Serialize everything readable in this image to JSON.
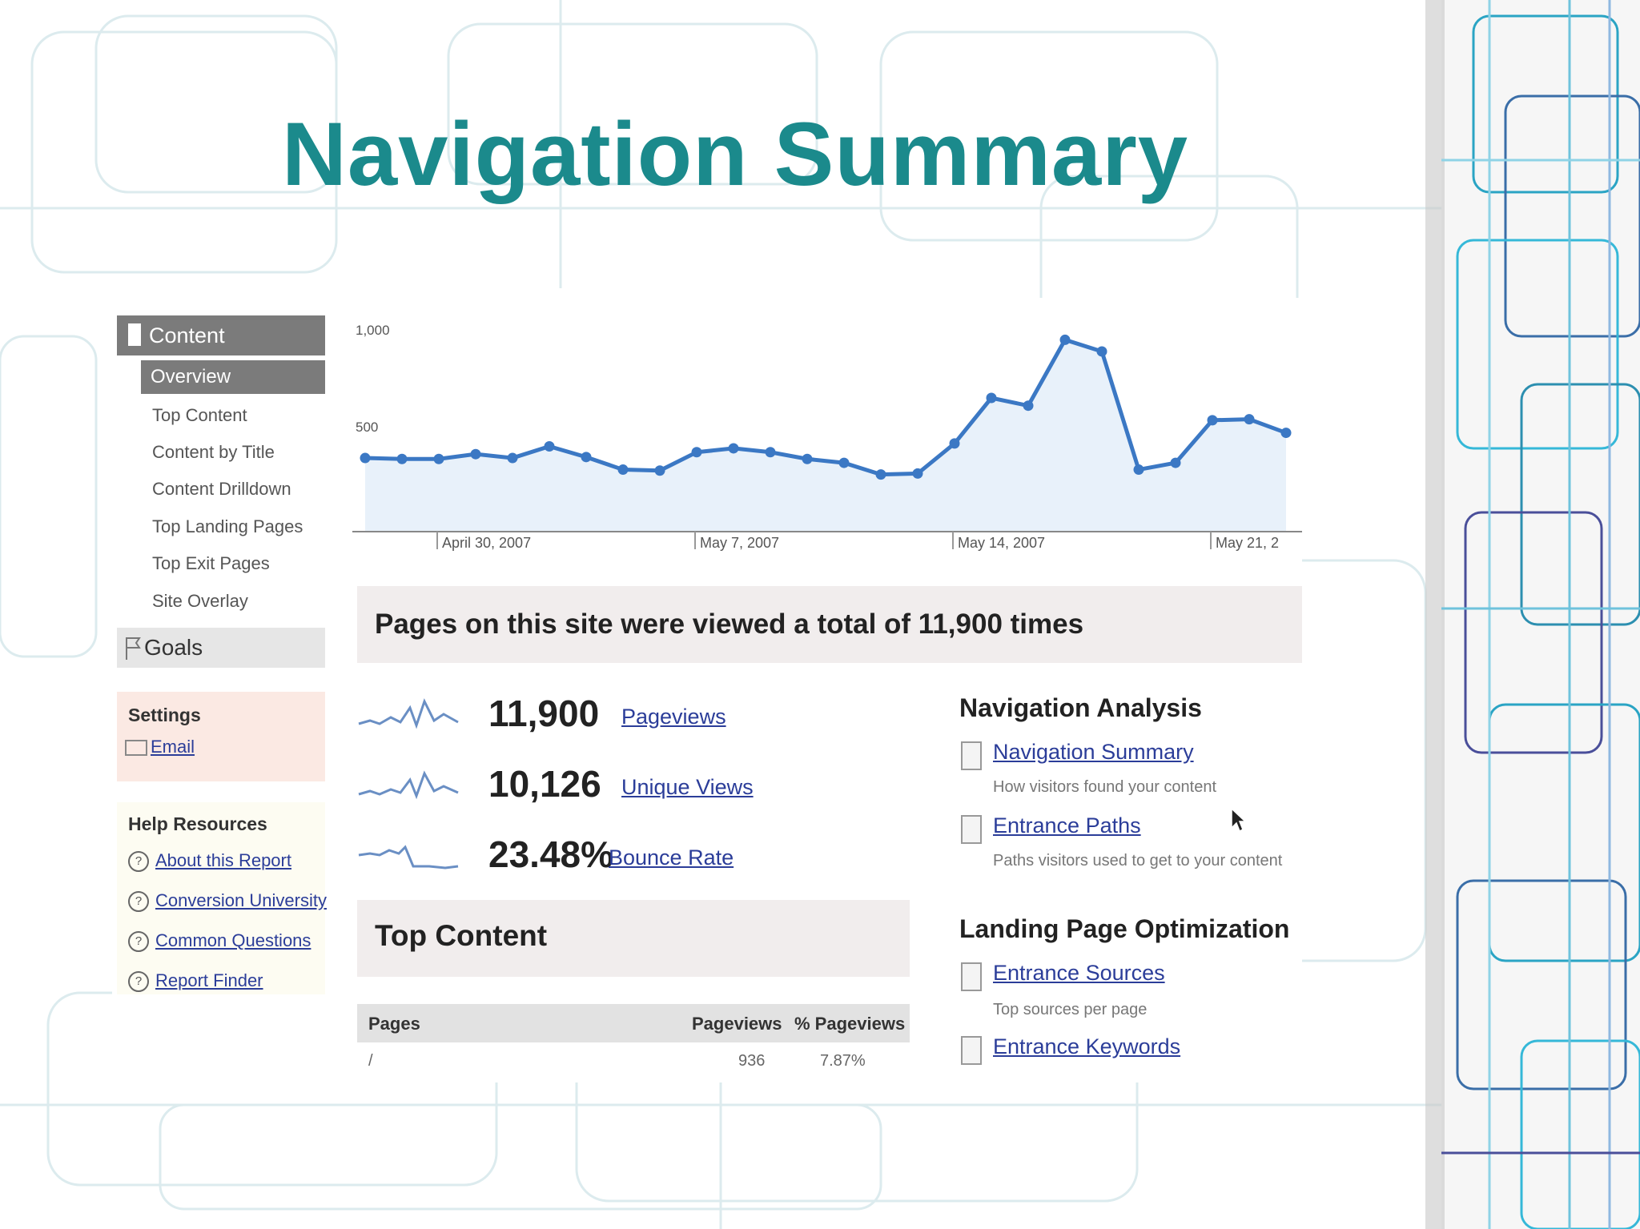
{
  "slide": {
    "title": "Navigation Summary"
  },
  "sidebar": {
    "content_label": "Content",
    "overview_label": "Overview",
    "items": [
      "Top Content",
      "Content by Title",
      "Content Drilldown",
      "Top Landing Pages",
      "Top Exit Pages",
      "Site Overlay"
    ],
    "goals_label": "Goals",
    "settings": {
      "heading": "Settings",
      "email_label": "Email"
    },
    "help": {
      "heading": "Help Resources",
      "links": [
        "About this Report",
        "Conversion University",
        "Common Questions",
        "Report Finder"
      ]
    }
  },
  "chart_data": {
    "type": "area",
    "y_ticks": [
      "1,000",
      "500"
    ],
    "ylim": [
      0,
      1000
    ],
    "x_tick_labels": [
      "April 30, 2007",
      "May 7, 2007",
      "May 14, 2007",
      "May 21, 2"
    ],
    "values": [
      380,
      375,
      375,
      400,
      380,
      440,
      385,
      320,
      315,
      410,
      430,
      410,
      375,
      355,
      295,
      300,
      455,
      690,
      650,
      990,
      930,
      320,
      355,
      575,
      580,
      510
    ],
    "color": "#3b78c4",
    "fill": "#e8f1fa",
    "grid": false
  },
  "summary": {
    "banner": "Pages on this site were viewed a total of 11,900 times"
  },
  "metrics": [
    {
      "value": "11,900",
      "label": "Pageviews"
    },
    {
      "value": "10,126",
      "label": "Unique Views"
    },
    {
      "value": "23.48%",
      "label": "Bounce Rate"
    }
  ],
  "top_content": {
    "heading": "Top Content",
    "columns": [
      "Pages",
      "Pageviews",
      "% Pageviews"
    ],
    "rows": [
      {
        "page": "/",
        "pageviews": "936",
        "percent": "7.87%"
      }
    ]
  },
  "navigation_analysis": {
    "heading": "Navigation Analysis",
    "items": [
      {
        "label": "Navigation Summary",
        "desc": "How visitors found your content"
      },
      {
        "label": "Entrance Paths",
        "desc": "Paths visitors used to get to your content"
      }
    ]
  },
  "landing_page_optimization": {
    "heading": "Landing Page Optimization",
    "items": [
      {
        "label": "Entrance Sources",
        "desc": "Top sources per page"
      },
      {
        "label": "Entrance Keywords",
        "desc": ""
      }
    ]
  }
}
